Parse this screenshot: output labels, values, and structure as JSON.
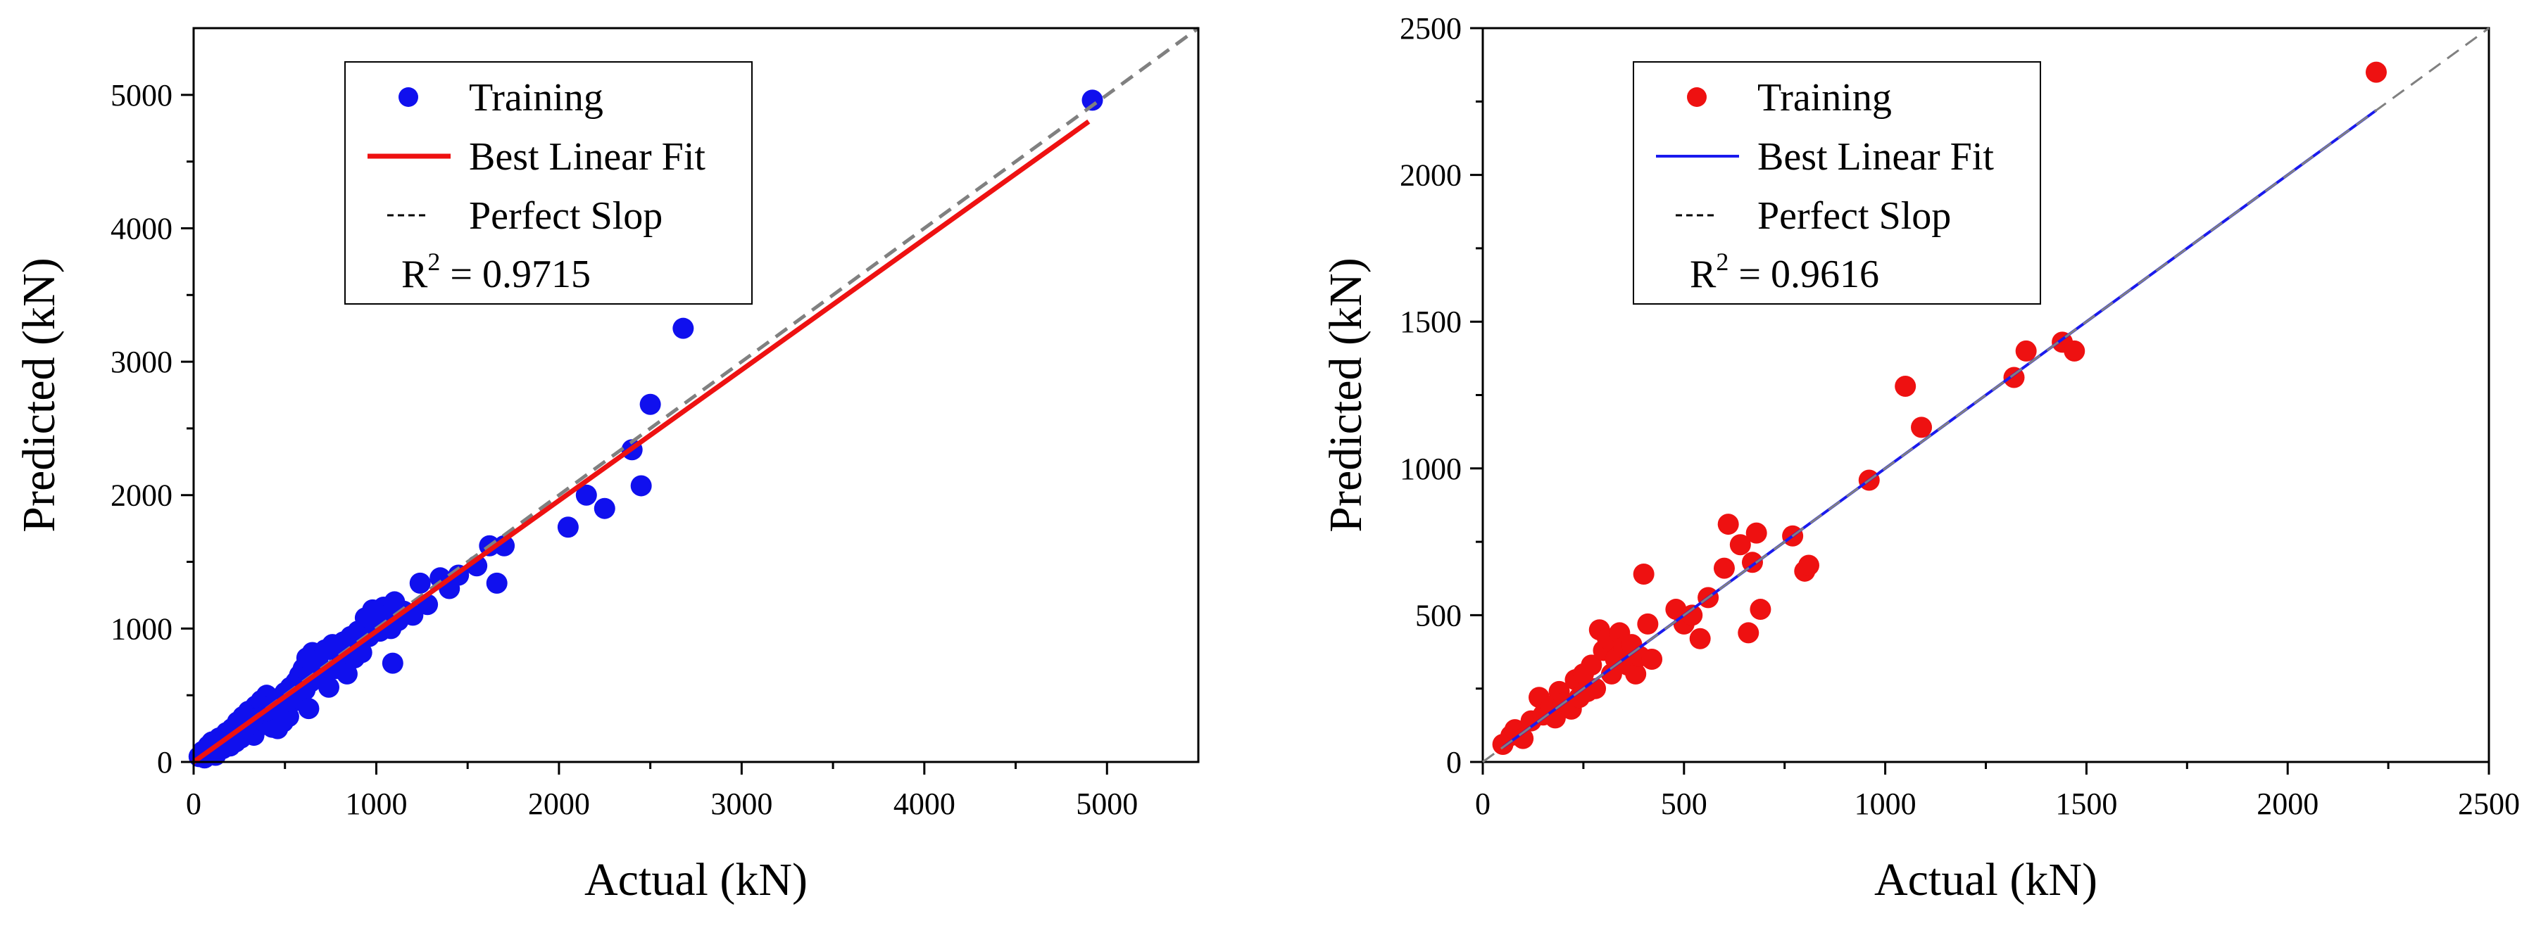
{
  "chart_data": [
    {
      "type": "scatter",
      "xlabel": "Actual (kN)",
      "ylabel": "Predicted (kN)",
      "xlim": [
        0,
        5500
      ],
      "ylim": [
        0,
        5500
      ],
      "x_ticks": [
        "0",
        "1000",
        "2000",
        "3000",
        "4000",
        "5000"
      ],
      "y_ticks": [
        "0",
        "1000",
        "2000",
        "3000",
        "4000",
        "5000"
      ],
      "x_tick_values": [
        0,
        1000,
        2000,
        3000,
        4000,
        5000
      ],
      "y_tick_values": [
        0,
        1000,
        2000,
        3000,
        4000,
        5000
      ],
      "legend": {
        "training_label": "Training",
        "fit_label": "Best Linear Fit",
        "perfect_label": "Perfect Slop",
        "r2_prefix": "R",
        "r2_sup": "2",
        "r2_value": " = 0.9715"
      },
      "colors": {
        "points": "#1010ee",
        "fit": "#ee1111",
        "perfect": "#808080"
      },
      "fit_line": {
        "x": [
          0,
          4900
        ],
        "y": [
          0,
          4800
        ]
      },
      "perfect_line": {
        "x": [
          0,
          5500
        ],
        "y": [
          0,
          5500
        ]
      },
      "points": [
        [
          30,
          40
        ],
        [
          50,
          80
        ],
        [
          60,
          30
        ],
        [
          80,
          120
        ],
        [
          90,
          60
        ],
        [
          100,
          150
        ],
        [
          110,
          90
        ],
        [
          120,
          50
        ],
        [
          140,
          180
        ],
        [
          150,
          130
        ],
        [
          160,
          100
        ],
        [
          180,
          220
        ],
        [
          190,
          160
        ],
        [
          200,
          120
        ],
        [
          210,
          250
        ],
        [
          220,
          190
        ],
        [
          230,
          150
        ],
        [
          240,
          300
        ],
        [
          250,
          230
        ],
        [
          260,
          180
        ],
        [
          270,
          340
        ],
        [
          280,
          260
        ],
        [
          290,
          210
        ],
        [
          300,
          380
        ],
        [
          310,
          290
        ],
        [
          320,
          240
        ],
        [
          330,
          200
        ],
        [
          340,
          420
        ],
        [
          350,
          330
        ],
        [
          360,
          270
        ],
        [
          370,
          460
        ],
        [
          380,
          350
        ],
        [
          390,
          300
        ],
        [
          400,
          500
        ],
        [
          410,
          380
        ],
        [
          420,
          320
        ],
        [
          430,
          260
        ],
        [
          440,
          440
        ],
        [
          450,
          350
        ],
        [
          460,
          250
        ],
        [
          470,
          480
        ],
        [
          480,
          380
        ],
        [
          490,
          300
        ],
        [
          500,
          520
        ],
        [
          510,
          420
        ],
        [
          520,
          340
        ],
        [
          530,
          560
        ],
        [
          540,
          450
        ],
        [
          560,
          600
        ],
        [
          570,
          480
        ],
        [
          580,
          650
        ],
        [
          590,
          500
        ],
        [
          600,
          700
        ],
        [
          610,
          540
        ],
        [
          620,
          780
        ],
        [
          630,
          400
        ],
        [
          640,
          600
        ],
        [
          650,
          820
        ],
        [
          660,
          700
        ],
        [
          680,
          760
        ],
        [
          700,
          640
        ],
        [
          720,
          840
        ],
        [
          740,
          560
        ],
        [
          760,
          880
        ],
        [
          780,
          700
        ],
        [
          800,
          760
        ],
        [
          820,
          900
        ],
        [
          840,
          660
        ],
        [
          860,
          940
        ],
        [
          880,
          780
        ],
        [
          900,
          980
        ],
        [
          920,
          820
        ],
        [
          940,
          1080
        ],
        [
          960,
          940
        ],
        [
          980,
          1140
        ],
        [
          1000,
          1050
        ],
        [
          1020,
          980
        ],
        [
          1040,
          1160
        ],
        [
          1060,
          1100
        ],
        [
          1080,
          1000
        ],
        [
          1090,
          740
        ],
        [
          1100,
          1200
        ],
        [
          1120,
          1060
        ],
        [
          1150,
          1130
        ],
        [
          1200,
          1100
        ],
        [
          1240,
          1340
        ],
        [
          1280,
          1180
        ],
        [
          1350,
          1380
        ],
        [
          1400,
          1300
        ],
        [
          1450,
          1400
        ],
        [
          1550,
          1470
        ],
        [
          1620,
          1620
        ],
        [
          1660,
          1340
        ],
        [
          1700,
          1620
        ],
        [
          2050,
          1760
        ],
        [
          2150,
          2000
        ],
        [
          2250,
          1900
        ],
        [
          2400,
          2340
        ],
        [
          2450,
          2070
        ],
        [
          2500,
          2680
        ],
        [
          2680,
          3250
        ],
        [
          4920,
          4960
        ]
      ]
    },
    {
      "type": "scatter",
      "xlabel": "Actual (kN)",
      "ylabel": "Predicted (kN)",
      "xlim": [
        0,
        2500
      ],
      "ylim": [
        0,
        2500
      ],
      "x_ticks": [
        "0",
        "500",
        "1000",
        "1500",
        "2000",
        "2500"
      ],
      "y_ticks": [
        "0",
        "500",
        "1000",
        "1500",
        "2000",
        "2500"
      ],
      "x_tick_values": [
        0,
        500,
        1000,
        1500,
        2000,
        2500
      ],
      "y_tick_values": [
        0,
        500,
        1000,
        1500,
        2000,
        2500
      ],
      "legend": {
        "training_label": "Training",
        "fit_label": "Best Linear Fit",
        "perfect_label": "Perfect Slop",
        "r2_prefix": "R",
        "r2_sup": "2",
        "r2_value": " = 0.9616"
      },
      "colors": {
        "points": "#ee1111",
        "fit": "#1a1aee",
        "perfect": "#808080"
      },
      "fit_line": {
        "x": [
          50,
          2220
        ],
        "y": [
          50,
          2220
        ]
      },
      "perfect_line": {
        "x": [
          0,
          2500
        ],
        "y": [
          0,
          2500
        ]
      },
      "points": [
        [
          50,
          60
        ],
        [
          70,
          90
        ],
        [
          80,
          110
        ],
        [
          100,
          80
        ],
        [
          120,
          140
        ],
        [
          140,
          220
        ],
        [
          150,
          160
        ],
        [
          170,
          190
        ],
        [
          180,
          150
        ],
        [
          190,
          240
        ],
        [
          200,
          200
        ],
        [
          220,
          180
        ],
        [
          230,
          280
        ],
        [
          240,
          220
        ],
        [
          250,
          300
        ],
        [
          260,
          240
        ],
        [
          270,
          330
        ],
        [
          280,
          250
        ],
        [
          290,
          450
        ],
        [
          300,
          380
        ],
        [
          310,
          420
        ],
        [
          320,
          300
        ],
        [
          330,
          350
        ],
        [
          340,
          440
        ],
        [
          350,
          390
        ],
        [
          360,
          330
        ],
        [
          370,
          400
        ],
        [
          380,
          300
        ],
        [
          390,
          360
        ],
        [
          400,
          640
        ],
        [
          410,
          470
        ],
        [
          420,
          350
        ],
        [
          480,
          520
        ],
        [
          500,
          470
        ],
        [
          520,
          500
        ],
        [
          540,
          420
        ],
        [
          560,
          560
        ],
        [
          600,
          660
        ],
        [
          610,
          810
        ],
        [
          640,
          740
        ],
        [
          660,
          440
        ],
        [
          670,
          680
        ],
        [
          680,
          780
        ],
        [
          690,
          520
        ],
        [
          770,
          770
        ],
        [
          800,
          650
        ],
        [
          810,
          670
        ],
        [
          960,
          960
        ],
        [
          1050,
          1280
        ],
        [
          1090,
          1140
        ],
        [
          1320,
          1310
        ],
        [
          1350,
          1400
        ],
        [
          1440,
          1430
        ],
        [
          1470,
          1400
        ],
        [
          2220,
          2350
        ]
      ]
    }
  ]
}
